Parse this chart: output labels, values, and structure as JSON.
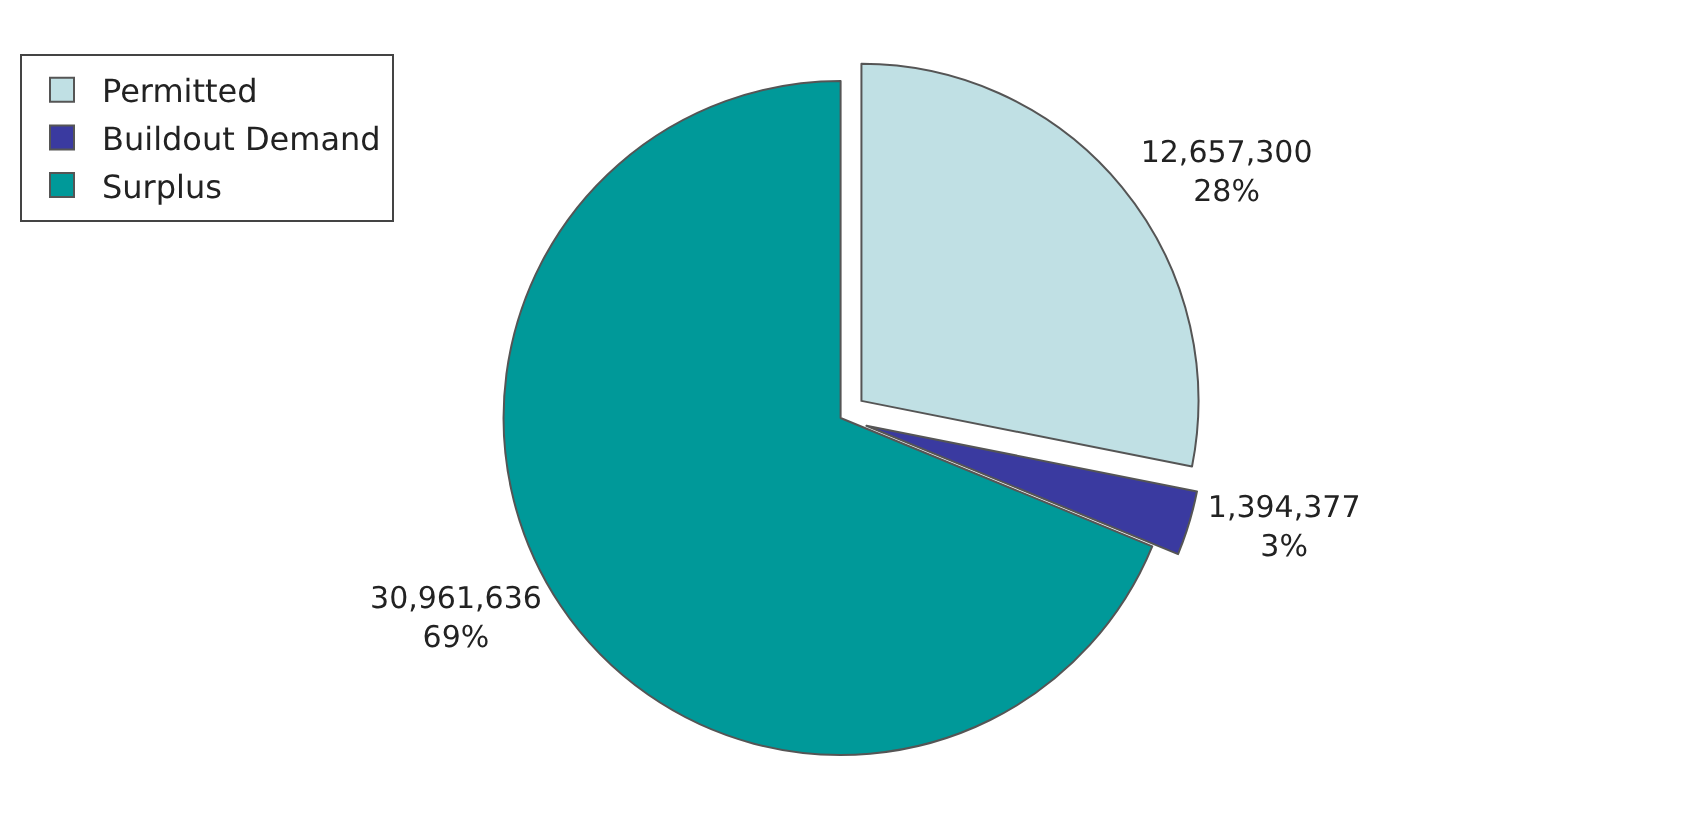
{
  "chart_data": {
    "type": "pie",
    "categories": [
      "Permitted",
      "Buildout Demand",
      "Surplus"
    ],
    "values": [
      12657300,
      1394377,
      30961636
    ],
    "colors": [
      "#c0e0e4",
      "#3a3aa0",
      "#009999"
    ],
    "value_labels": [
      "12,657,300\n28%",
      "1,394,377\n3%",
      "30,961,636\n69%"
    ],
    "legend": "top left"
  }
}
